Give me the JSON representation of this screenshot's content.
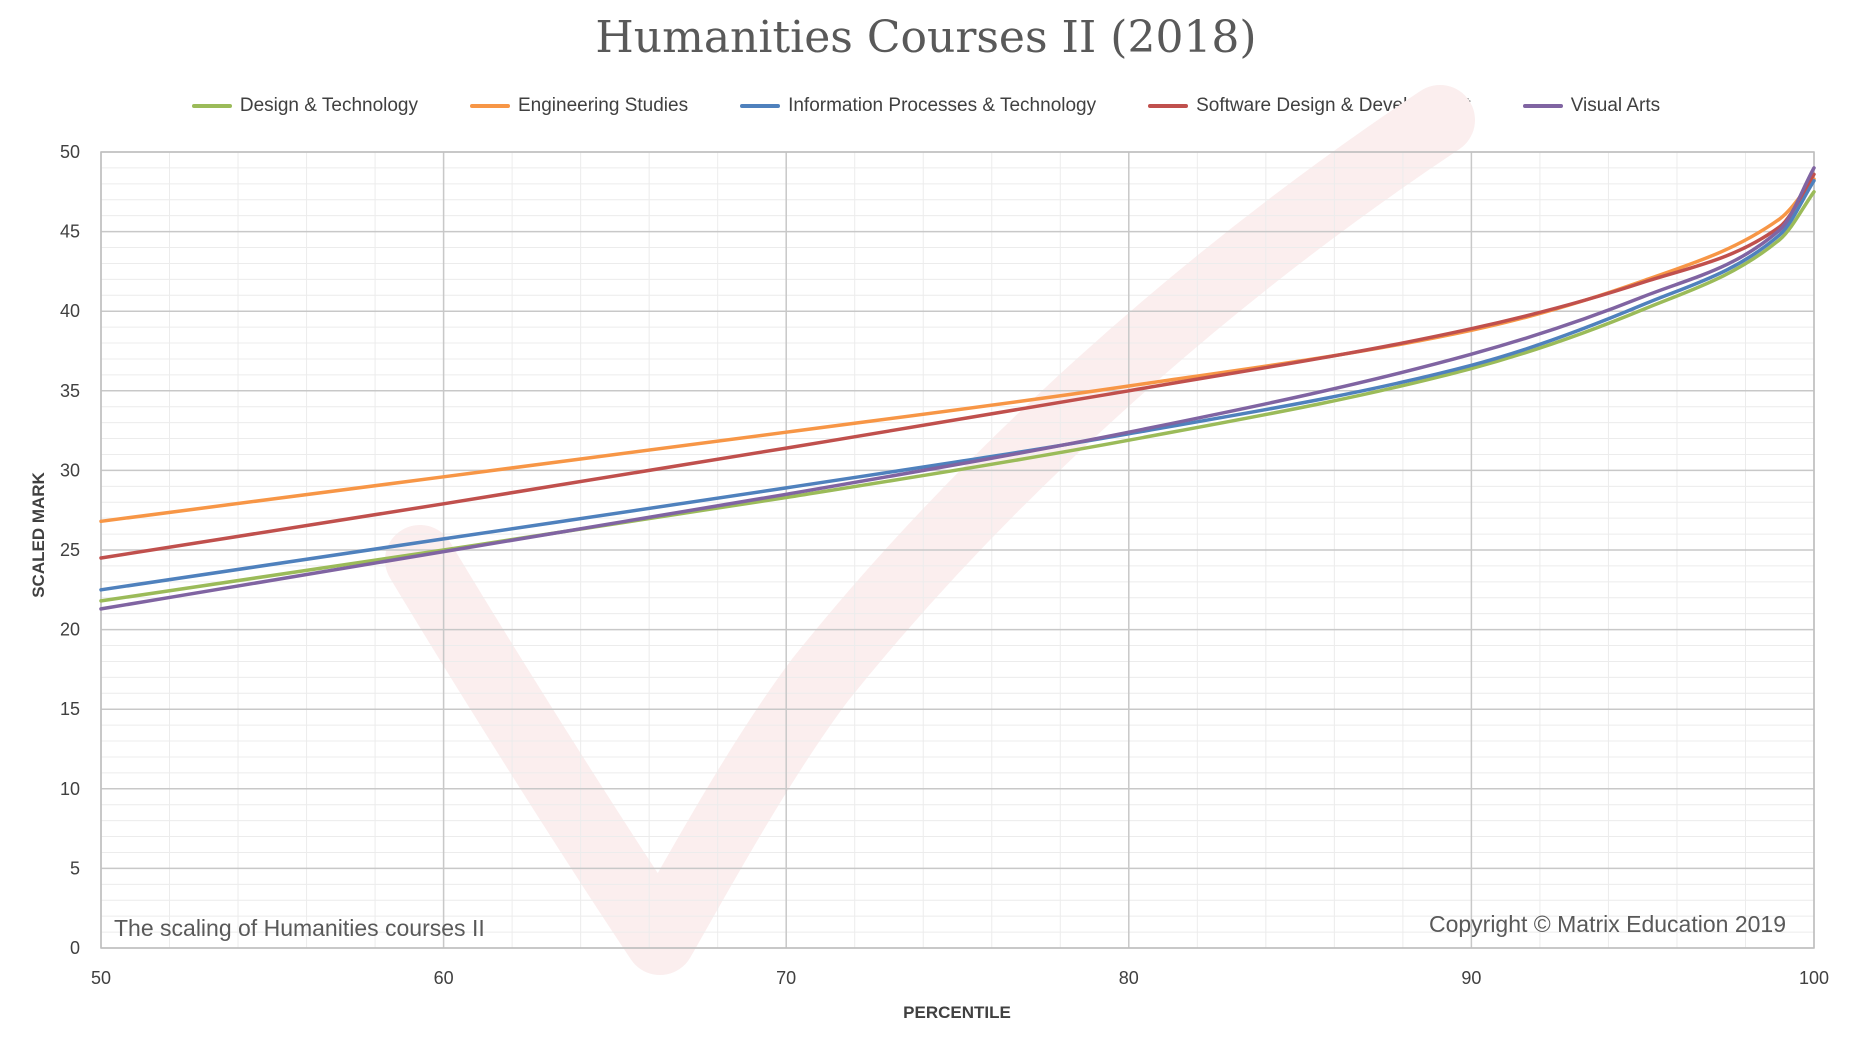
{
  "chart_data": {
    "type": "line",
    "title": "Humanities Courses II (2018)",
    "xlabel": "PERCENTILE",
    "ylabel": "SCALED MARK",
    "xlim": [
      50,
      100
    ],
    "ylim": [
      0,
      50
    ],
    "x_ticks": [
      50,
      60,
      70,
      80,
      90,
      100
    ],
    "y_ticks": [
      0,
      5,
      10,
      15,
      20,
      25,
      30,
      35,
      40,
      45,
      50
    ],
    "grid": true,
    "legend": "top",
    "x": [
      50,
      60,
      70,
      80,
      90,
      95,
      99,
      100
    ],
    "series": [
      {
        "name": "Design & Technology",
        "color": "#9bbb59",
        "values": [
          21.8,
          25.0,
          28.3,
          31.9,
          36.4,
          40.1,
          44.5,
          47.5
        ]
      },
      {
        "name": "Engineering Studies",
        "color": "#f79646",
        "values": [
          26.8,
          29.6,
          32.4,
          35.3,
          38.8,
          41.9,
          45.8,
          48.3
        ]
      },
      {
        "name": "Information Processes & Technology",
        "color": "#4f81bd",
        "values": [
          22.5,
          25.7,
          28.9,
          32.3,
          36.6,
          40.4,
          44.8,
          48.2
        ]
      },
      {
        "name": "Software Design & Development",
        "color": "#c0504d",
        "values": [
          24.5,
          27.9,
          31.4,
          35.0,
          38.9,
          41.8,
          45.3,
          48.6
        ]
      },
      {
        "name": "Visual Arts",
        "color": "#8064a2",
        "values": [
          21.3,
          24.9,
          28.5,
          32.4,
          37.3,
          40.9,
          45.1,
          49.0
        ]
      }
    ],
    "annotations": [
      "The scaling of Humanities courses II",
      "Copyright © Matrix Education 2019"
    ]
  }
}
